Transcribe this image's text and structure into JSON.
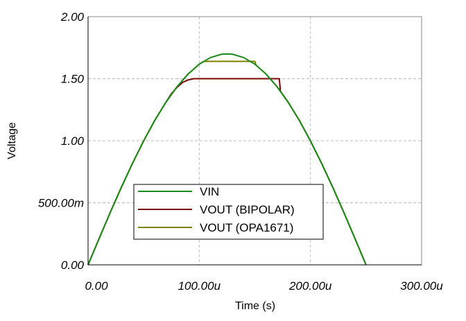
{
  "chart_data": {
    "type": "line",
    "xlabel": "Time (s)",
    "ylabel": "Voltage",
    "xlim": [
      0,
      0.0003
    ],
    "ylim": [
      0,
      2
    ],
    "grid": true,
    "legend_position": "bottom-left",
    "xticks": [
      {
        "v": 0,
        "label": "0.00"
      },
      {
        "v": 0.0001,
        "label": "100.00u"
      },
      {
        "v": 0.0002,
        "label": "200.00u"
      },
      {
        "v": 0.0003,
        "label": "300.00u"
      }
    ],
    "yticks": [
      {
        "v": 0,
        "label": "0.00"
      },
      {
        "v": 0.5,
        "label": "500.00m"
      },
      {
        "v": 1,
        "label": "1.00"
      },
      {
        "v": 1.5,
        "label": "1.50"
      },
      {
        "v": 2,
        "label": "2.00"
      }
    ],
    "series": [
      {
        "name": "VIN",
        "color": "#1a8a1a",
        "x_us": [
          0,
          10,
          20,
          30,
          40,
          50,
          60,
          70,
          80,
          90,
          100,
          110,
          120,
          125,
          130,
          140,
          150,
          160,
          170,
          180,
          190,
          200,
          210,
          220,
          230,
          240,
          250
        ],
        "y": [
          0,
          0.213,
          0.423,
          0.626,
          0.819,
          0.999,
          1.164,
          1.31,
          1.435,
          1.538,
          1.617,
          1.67,
          1.697,
          1.7,
          1.697,
          1.67,
          1.617,
          1.538,
          1.435,
          1.31,
          1.164,
          0.999,
          0.819,
          0.626,
          0.423,
          0.213,
          0
        ]
      },
      {
        "name": "VOUT (BIPOLAR)",
        "color": "#7a0000",
        "x_us": [
          0,
          10,
          20,
          30,
          40,
          50,
          60,
          70,
          75,
          80,
          85,
          90,
          95,
          172,
          173,
          180,
          190,
          200,
          210,
          220,
          230,
          240,
          250
        ],
        "y": [
          0,
          0.213,
          0.423,
          0.626,
          0.819,
          0.999,
          1.164,
          1.31,
          1.38,
          1.43,
          1.47,
          1.49,
          1.5,
          1.5,
          1.4,
          1.31,
          1.164,
          0.999,
          0.819,
          0.626,
          0.423,
          0.213,
          0
        ]
      },
      {
        "name": "VOUT (OPA1671)",
        "color": "#7f7f00",
        "x_us": [
          0,
          10,
          20,
          30,
          40,
          50,
          60,
          70,
          80,
          90,
          100,
          104,
          150,
          151,
          160,
          170,
          180,
          190,
          200,
          210,
          220,
          230,
          240,
          250
        ],
        "y": [
          0,
          0.213,
          0.423,
          0.626,
          0.819,
          0.999,
          1.164,
          1.31,
          1.435,
          1.538,
          1.617,
          1.64,
          1.64,
          1.61,
          1.538,
          1.435,
          1.31,
          1.164,
          0.999,
          0.819,
          0.626,
          0.423,
          0.213,
          0
        ]
      }
    ]
  }
}
